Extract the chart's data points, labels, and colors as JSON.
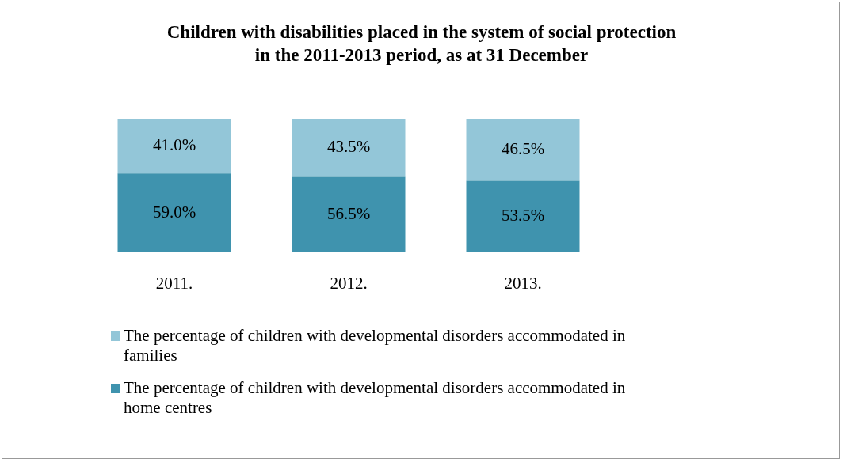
{
  "chart_data": {
    "type": "bar",
    "stacked": true,
    "title": "Children with disabilities placed in the system of social protection\nin the 2011-2013 period, as at 31 December",
    "categories": [
      "2011.",
      "2012.",
      "2013."
    ],
    "series": [
      {
        "name": "The percentage of children with developmental disorders accommodated in home centres",
        "color": "#3f93ae",
        "values": [
          59.0,
          56.5,
          53.5
        ],
        "value_labels": [
          "59.0%",
          "56.5%",
          "53.5%"
        ]
      },
      {
        "name": "The percentage of children with developmental disorders accommodated in families",
        "color": "#93c6d8",
        "values": [
          41.0,
          43.5,
          46.5
        ],
        "value_labels": [
          "41.0%",
          "43.5%",
          "46.5%"
        ]
      }
    ],
    "legend": "bottom",
    "grid": false
  }
}
